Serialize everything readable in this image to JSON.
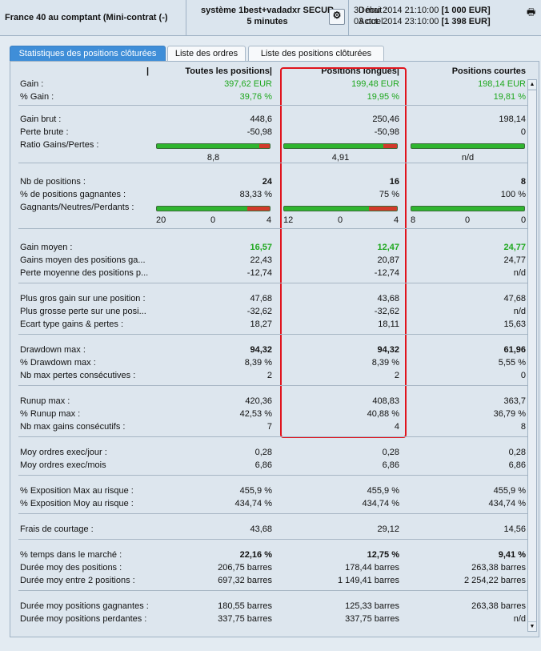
{
  "header": {
    "instrument": "France 40 au comptant (Mini-contrat  (-)",
    "system_line1": "système 1best+vadadxr SECUR",
    "system_line2": "5 minutes",
    "debut_label": "Début :",
    "debut_value": "30 mai 2014 21:10:00",
    "debut_capital": "[1 000 EUR]",
    "actuel_label": "Actuel :",
    "actuel_value": "03 oct. 2014 23:10:00",
    "actuel_capital": "[1 398 EUR]"
  },
  "tabs": [
    "Statistiques des positions clôturées",
    "Liste des ordres",
    "Liste des positions clôturées"
  ],
  "columns": [
    "Toutes les positions",
    "Positions longues",
    "Positions courtes"
  ],
  "rows": [
    {
      "label": "Gain :",
      "v": [
        "397,62 EUR",
        "199,48 EUR",
        "198,14 EUR"
      ]
    },
    {
      "label": "% Gain :",
      "v": [
        "39,76 %",
        "19,95 %",
        "19,81 %"
      ]
    },
    {
      "label": "Gain brut :",
      "v": [
        "448,6",
        "250,46",
        "198,14"
      ]
    },
    {
      "label": "Perte brute :",
      "v": [
        "-50,98",
        "-50,98",
        "0"
      ]
    },
    {
      "label": "Ratio Gains/Pertes :",
      "v": [
        "8,8",
        "4,91",
        "n/d"
      ]
    },
    {
      "label": "Nb de positions :",
      "v": [
        "24",
        "16",
        "8"
      ]
    },
    {
      "label": "% de positions gagnantes :",
      "v": [
        "83,33 %",
        "75 %",
        "100 %"
      ]
    },
    {
      "label": "Gagnants/Neutres/Perdants :",
      "v": [
        [
          "20",
          "0",
          "4"
        ],
        [
          "12",
          "0",
          "4"
        ],
        [
          "8",
          "0",
          "0"
        ]
      ]
    },
    {
      "label": "Gain moyen :",
      "v": [
        "16,57",
        "12,47",
        "24,77"
      ]
    },
    {
      "label": "Gains moyen des positions ga...",
      "v": [
        "22,43",
        "20,87",
        "24,77"
      ]
    },
    {
      "label": "Perte moyenne des positions p...",
      "v": [
        "-12,74",
        "-12,74",
        "n/d"
      ]
    },
    {
      "label": "Plus gros gain sur une position :",
      "v": [
        "47,68",
        "43,68",
        "47,68"
      ]
    },
    {
      "label": "Plus grosse perte sur une posi...",
      "v": [
        "-32,62",
        "-32,62",
        "n/d"
      ]
    },
    {
      "label": "Ecart type gains & pertes :",
      "v": [
        "18,27",
        "18,11",
        "15,63"
      ]
    },
    {
      "label": "Drawdown max :",
      "v": [
        "94,32",
        "94,32",
        "61,96"
      ]
    },
    {
      "label": "% Drawdown max :",
      "v": [
        "8,39 %",
        "8,39 %",
        "5,55 %"
      ]
    },
    {
      "label": "Nb max pertes consécutives :",
      "v": [
        "2",
        "2",
        "0"
      ]
    },
    {
      "label": "Runup max :",
      "v": [
        "420,36",
        "408,83",
        "363,7"
      ]
    },
    {
      "label": "% Runup max :",
      "v": [
        "42,53 %",
        "40,88 %",
        "36,79 %"
      ]
    },
    {
      "label": "Nb max gains consécutifs :",
      "v": [
        "7",
        "4",
        "8"
      ]
    },
    {
      "label": "Moy ordres exec/jour :",
      "v": [
        "0,28",
        "0,28",
        "0,28"
      ]
    },
    {
      "label": "Moy ordres exec/mois",
      "v": [
        "6,86",
        "6,86",
        "6,86"
      ]
    },
    {
      "label": "% Exposition Max au risque :",
      "v": [
        "455,9 %",
        "455,9 %",
        "455,9 %"
      ]
    },
    {
      "label": "% Exposition Moy au risque :",
      "v": [
        "434,74 %",
        "434,74 %",
        "434,74 %"
      ]
    },
    {
      "label": "Frais de courtage :",
      "v": [
        "43,68",
        "29,12",
        "14,56"
      ]
    },
    {
      "label": "% temps dans le marché :",
      "v": [
        "22,16 %",
        "12,75 %",
        "9,41 %"
      ]
    },
    {
      "label": "Durée moy des positions :",
      "v": [
        "206,75 barres",
        "178,44 barres",
        "263,38 barres"
      ]
    },
    {
      "label": "Durée moy entre 2 positions :",
      "v": [
        "697,32 barres",
        "1 149,41 barres",
        "2 254,22 barres"
      ]
    },
    {
      "label": "Durée moy positions gagnantes :",
      "v": [
        "180,55 barres",
        "125,33 barres",
        "263,38 barres"
      ]
    },
    {
      "label": "Durée moy positions perdantes :",
      "v": [
        "337,75 barres",
        "337,75 barres",
        "n/d"
      ]
    }
  ],
  "ratio_bars": [
    0.91,
    0.88,
    1.0
  ],
  "wnl_bars": [
    0.8,
    0.75,
    1.0
  ],
  "colors": {
    "gain_green": "#1fa81f",
    "bar_green": "#2fb52f",
    "bar_red": "#d23a2a",
    "highlight": "#e0141d",
    "tab_active": "#3f8ed8"
  }
}
